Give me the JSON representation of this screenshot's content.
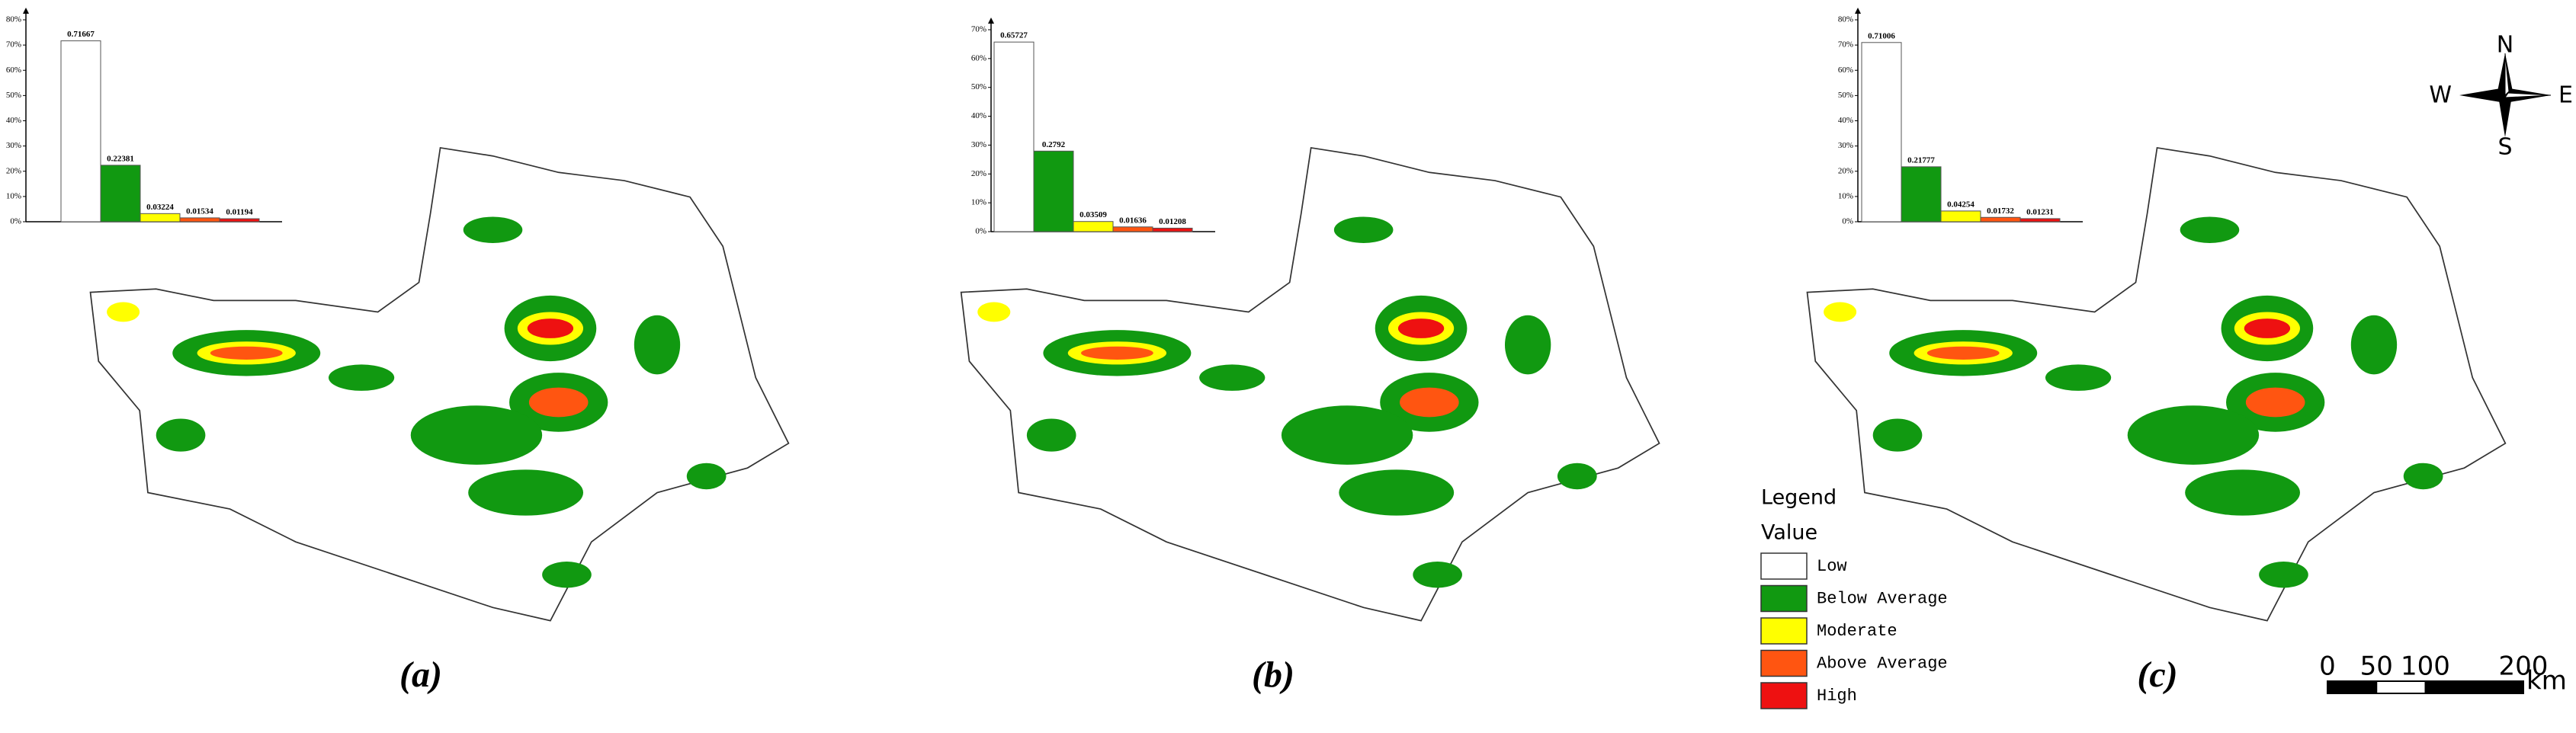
{
  "chart_data": [
    {
      "type": "bar",
      "title": "(a)",
      "categories": [
        null,
        null,
        null,
        null,
        null
      ],
      "values": [
        71.667,
        22.381,
        3.224,
        1.534,
        1.194
      ],
      "value_labels": [
        "0.71667",
        "0.22381",
        "0.03224",
        "0.01534",
        "0.01194"
      ],
      "colors": [
        "#ffffff",
        "#119911",
        "#ffff00",
        "#ff5511",
        "#ee1111"
      ],
      "ylim": [
        0,
        80
      ],
      "yticks": [
        {
          "value": 0,
          "label": "0%"
        },
        {
          "value": 10,
          "label": "10%"
        },
        {
          "value": 20,
          "label": "20%"
        },
        {
          "value": 30,
          "label": "30%"
        },
        {
          "value": 40,
          "label": "40%"
        },
        {
          "value": 50,
          "label": "50%"
        },
        {
          "value": 60,
          "label": "60%"
        },
        {
          "value": 70,
          "label": "70%"
        },
        {
          "value": 80,
          "label": "80%"
        }
      ]
    },
    {
      "type": "bar",
      "title": "(b)",
      "categories": [
        null,
        null,
        null,
        null,
        null
      ],
      "values": [
        65.727,
        27.92,
        3.509,
        1.636,
        1.208
      ],
      "value_labels": [
        "0.65727",
        "0.2792",
        "0.03509",
        "0.01636",
        "0.01208"
      ],
      "colors": [
        "#ffffff",
        "#119911",
        "#ffff00",
        "#ff5511",
        "#ee1111"
      ],
      "ylim": [
        0,
        70
      ],
      "yticks": [
        {
          "value": 0,
          "label": "0%"
        },
        {
          "value": 10,
          "label": "10%"
        },
        {
          "value": 20,
          "label": "20%"
        },
        {
          "value": 30,
          "label": "30%"
        },
        {
          "value": 40,
          "label": "40%"
        },
        {
          "value": 50,
          "label": "50%"
        },
        {
          "value": 60,
          "label": "60%"
        },
        {
          "value": 70,
          "label": "70%"
        }
      ]
    },
    {
      "type": "bar",
      "title": "(c)",
      "categories": [
        null,
        null,
        null,
        null,
        null
      ],
      "values": [
        71.006,
        21.777,
        4.254,
        1.732,
        1.231
      ],
      "value_labels": [
        "0.71006",
        "0.21777",
        "0.04254",
        "0.01732",
        "0.01231"
      ],
      "colors": [
        "#ffffff",
        "#119911",
        "#ffff00",
        "#ff5511",
        "#ee1111"
      ],
      "ylim": [
        0,
        80
      ],
      "yticks": [
        {
          "value": 0,
          "label": "0%"
        },
        {
          "value": 10,
          "label": "10%"
        },
        {
          "value": 20,
          "label": "20%"
        },
        {
          "value": 30,
          "label": "30%"
        },
        {
          "value": 40,
          "label": "40%"
        },
        {
          "value": 50,
          "label": "50%"
        },
        {
          "value": 60,
          "label": "60%"
        },
        {
          "value": 70,
          "label": "70%"
        },
        {
          "value": 80,
          "label": "80%"
        }
      ]
    }
  ],
  "legend": {
    "title": "Legend",
    "subtitle": "Value",
    "items": [
      {
        "name": "Low",
        "color": "#ffffff"
      },
      {
        "name": "Below Average",
        "color": "#119911"
      },
      {
        "name": "Moderate",
        "color": "#ffff00"
      },
      {
        "name": "Above Average",
        "color": "#ff5511"
      },
      {
        "name": "High",
        "color": "#ee1111"
      }
    ]
  },
  "compass": {
    "north": "N",
    "east": "E",
    "south": "S",
    "west": "W"
  },
  "scale_bar": {
    "ticks": [
      0,
      50,
      100,
      200
    ],
    "unit": "km"
  }
}
